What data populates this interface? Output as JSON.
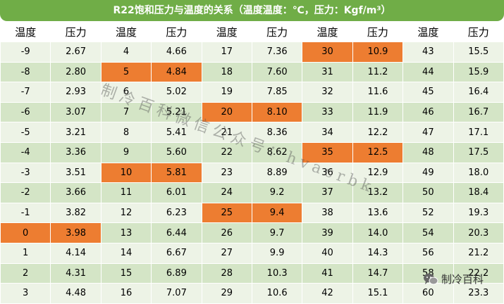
{
  "title": "R22饱和压力与温度的关系（温度温度：℃，压力：Kgf/m³）",
  "headers": [
    "温度",
    "压力",
    "温度",
    "压力",
    "温度",
    "压力",
    "温度",
    "压力",
    "温度",
    "压力"
  ],
  "rows": [
    [
      "-9",
      "2.67",
      "4",
      "4.66",
      "17",
      "7.36",
      "30",
      "10.9",
      "43",
      "15.5"
    ],
    [
      "-8",
      "2.80",
      "5",
      "4.84",
      "18",
      "7.60",
      "31",
      "11.2",
      "44",
      "15.9"
    ],
    [
      "-7",
      "2.93",
      "6",
      "5.02",
      "19",
      "7.85",
      "32",
      "11.6",
      "45",
      "16.4"
    ],
    [
      "-6",
      "3.07",
      "7",
      "5.21",
      "20",
      "8.10",
      "33",
      "11.9",
      "46",
      "16.7"
    ],
    [
      "-5",
      "3.21",
      "8",
      "5.41",
      "21",
      "8.36",
      "34",
      "12.2",
      "47",
      "17.1"
    ],
    [
      "-4",
      "3.36",
      "9",
      "5.60",
      "22",
      "8.62",
      "35",
      "12.5",
      "48",
      "17.5"
    ],
    [
      "-3",
      "3.51",
      "10",
      "5.81",
      "23",
      "8.89",
      "36",
      "12.9",
      "49",
      "18.0"
    ],
    [
      "-2",
      "3.66",
      "11",
      "6.01",
      "24",
      "9.2",
      "37",
      "13.2",
      "50",
      "18.4"
    ],
    [
      "-1",
      "3.82",
      "12",
      "6.23",
      "25",
      "9.4",
      "38",
      "13.6",
      "52",
      "19.3"
    ],
    [
      "0",
      "3.98",
      "13",
      "6.44",
      "26",
      "9.7",
      "39",
      "14.0",
      "54",
      "20.3"
    ],
    [
      "1",
      "4.14",
      "14",
      "6.67",
      "27",
      "9.9",
      "40",
      "14.3",
      "56",
      "21.2"
    ],
    [
      "2",
      "4.31",
      "15",
      "6.89",
      "28",
      "10.3",
      "41",
      "14.7",
      "58",
      "22.2"
    ],
    [
      "3",
      "4.48",
      "16",
      "7.07",
      "29",
      "10.6",
      "42",
      "15.1",
      "60",
      "23.3"
    ]
  ],
  "highlighted_cells": [
    [
      0,
      6
    ],
    [
      0,
      7
    ],
    [
      1,
      2
    ],
    [
      1,
      3
    ],
    [
      3,
      4
    ],
    [
      3,
      5
    ],
    [
      5,
      6
    ],
    [
      5,
      7
    ],
    [
      6,
      2
    ],
    [
      6,
      3
    ],
    [
      8,
      4
    ],
    [
      8,
      5
    ],
    [
      9,
      0
    ],
    [
      9,
      1
    ]
  ],
  "watermark_text": "制冷百科微信公众号：hvacrbk",
  "brand_text": "制冷百科",
  "brand_icon": "wechat-icon",
  "colors": {
    "title_bg": "#70ad47",
    "row_light": "#edf3e6",
    "row_dark": "#d4e5c6",
    "highlight": "#ed7d31"
  }
}
